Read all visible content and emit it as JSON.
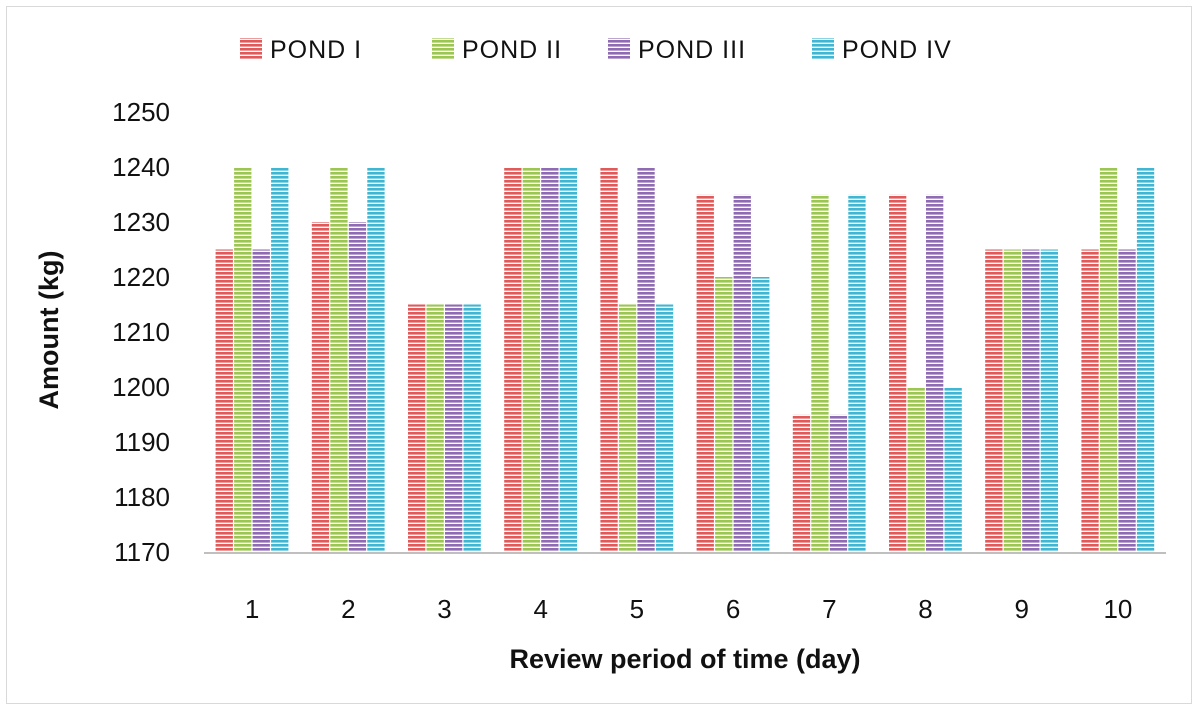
{
  "chart_data": {
    "type": "bar",
    "title": "",
    "xlabel": "Review period of time (day)",
    "ylabel": "Amount (kg)",
    "ylim": [
      1170,
      1250
    ],
    "yticks": [
      1170,
      1180,
      1190,
      1200,
      1210,
      1220,
      1230,
      1240,
      1250
    ],
    "grid": false,
    "legend_position": "top",
    "categories": [
      "1",
      "2",
      "3",
      "4",
      "5",
      "6",
      "7",
      "8",
      "9",
      "10"
    ],
    "series": [
      {
        "name": "POND I",
        "color": "#e05a5a",
        "values": [
          1225,
          1230,
          1215,
          1240,
          1240,
          1235,
          1195,
          1235,
          1225,
          1225
        ]
      },
      {
        "name": "POND II",
        "color": "#9bc64f",
        "values": [
          1240,
          1240,
          1215,
          1240,
          1215,
          1220,
          1235,
          1200,
          1225,
          1240
        ]
      },
      {
        "name": "POND III",
        "color": "#8f6bb3",
        "values": [
          1225,
          1230,
          1215,
          1240,
          1240,
          1235,
          1195,
          1235,
          1225,
          1225
        ]
      },
      {
        "name": "POND IV",
        "color": "#3fb6d3",
        "values": [
          1240,
          1240,
          1215,
          1240,
          1215,
          1220,
          1235,
          1200,
          1225,
          1240
        ]
      }
    ]
  }
}
